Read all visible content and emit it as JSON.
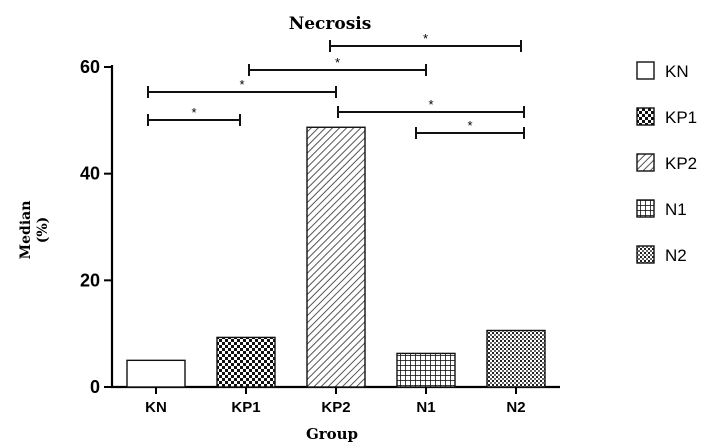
{
  "chart_data": {
    "type": "bar",
    "title": "Necrosis",
    "xlabel": "Group",
    "ylabel": "Median\n(%)",
    "categories": [
      "KN",
      "KP1",
      "KP2",
      "N1",
      "N2"
    ],
    "values": [
      5,
      9.3,
      48.7,
      6.3,
      10.6
    ],
    "ylim": [
      0,
      60
    ],
    "yticks": [
      0,
      20,
      40,
      60
    ],
    "grid": false,
    "legend_position": "right",
    "legend": [
      "KN",
      "KP1",
      "KP2",
      "N1",
      "N2"
    ],
    "patterns": [
      "none",
      "checker",
      "diagonal",
      "grid",
      "dots"
    ],
    "significance": [
      {
        "from": "KN",
        "to": "KP1",
        "label": "*"
      },
      {
        "from": "KN",
        "to": "KP2",
        "label": "*"
      },
      {
        "from": "KP1",
        "to": "N1",
        "label": "*"
      },
      {
        "from": "KP2",
        "to": "N2",
        "label": "*"
      },
      {
        "from": "KP2",
        "to": "N2",
        "label": "*"
      },
      {
        "from": "N1",
        "to": "N2",
        "label": "*"
      }
    ],
    "colors": {
      "axis": "#000000",
      "fill": "#ffffff",
      "ink": "#111111"
    }
  }
}
